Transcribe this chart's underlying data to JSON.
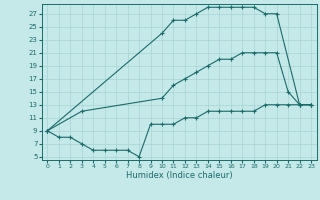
{
  "xlabel": "Humidex (Indice chaleur)",
  "bg_color": "#c5e8e8",
  "grid_color": "#a8d4d4",
  "line_color": "#1a6b6b",
  "xlim": [
    -0.5,
    23.5
  ],
  "ylim": [
    4.5,
    28.5
  ],
  "xticks": [
    0,
    1,
    2,
    3,
    4,
    5,
    6,
    7,
    8,
    9,
    10,
    11,
    12,
    13,
    14,
    15,
    16,
    17,
    18,
    19,
    20,
    21,
    22,
    23
  ],
  "yticks": [
    5,
    7,
    9,
    11,
    13,
    15,
    17,
    19,
    21,
    23,
    25,
    27
  ],
  "line1_x": [
    0,
    10,
    11,
    12,
    13,
    14,
    15,
    16,
    17,
    18,
    19,
    20,
    22,
    23
  ],
  "line1_y": [
    9,
    24,
    26,
    26,
    27,
    28,
    28,
    28,
    28,
    28,
    27,
    27,
    13,
    13
  ],
  "line2_x": [
    0,
    3,
    10,
    11,
    12,
    13,
    14,
    15,
    16,
    17,
    18,
    19,
    20,
    21,
    22,
    23
  ],
  "line2_y": [
    9,
    12,
    14,
    16,
    17,
    18,
    19,
    20,
    20,
    21,
    21,
    21,
    21,
    15,
    13,
    13
  ],
  "line3_x": [
    0,
    1,
    2,
    3,
    4,
    5,
    6,
    7,
    8,
    9,
    10,
    11,
    12,
    13,
    14,
    15,
    16,
    17,
    18,
    19,
    20,
    21,
    22,
    23
  ],
  "line3_y": [
    9,
    8,
    8,
    7,
    6,
    6,
    6,
    6,
    5,
    10,
    10,
    10,
    11,
    11,
    12,
    12,
    12,
    12,
    12,
    13,
    13,
    13,
    13,
    13
  ]
}
